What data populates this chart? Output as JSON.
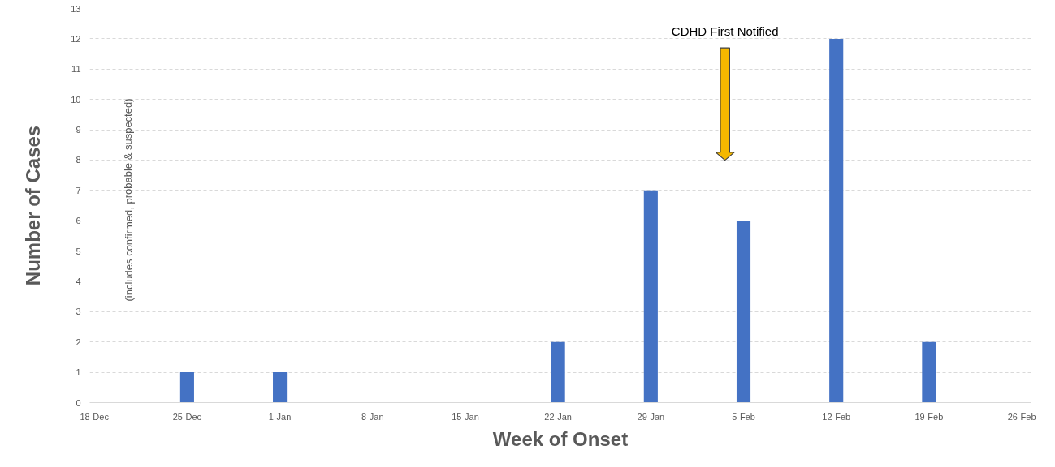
{
  "chart_data": {
    "type": "bar",
    "xlabel": "Week of Onset",
    "ylabel": "Number of Cases",
    "categories": [
      "18-Dec",
      "25-Dec",
      "1-Jan",
      "8-Jan",
      "15-Jan",
      "22-Jan",
      "29-Jan",
      "5-Feb",
      "12-Feb",
      "19-Feb",
      "26-Feb"
    ],
    "values": [
      null,
      1,
      1,
      null,
      null,
      2,
      7,
      6,
      12,
      2,
      null
    ],
    "color": "#4472c4",
    "ylim": [
      0,
      13
    ],
    "yticks": [
      0,
      1,
      2,
      3,
      4,
      5,
      6,
      7,
      8,
      9,
      10,
      11,
      12,
      13
    ],
    "grid": "y",
    "annotations": [
      "CDHD First Notified",
      "(includes confirmed, probable & suspected)"
    ]
  }
}
